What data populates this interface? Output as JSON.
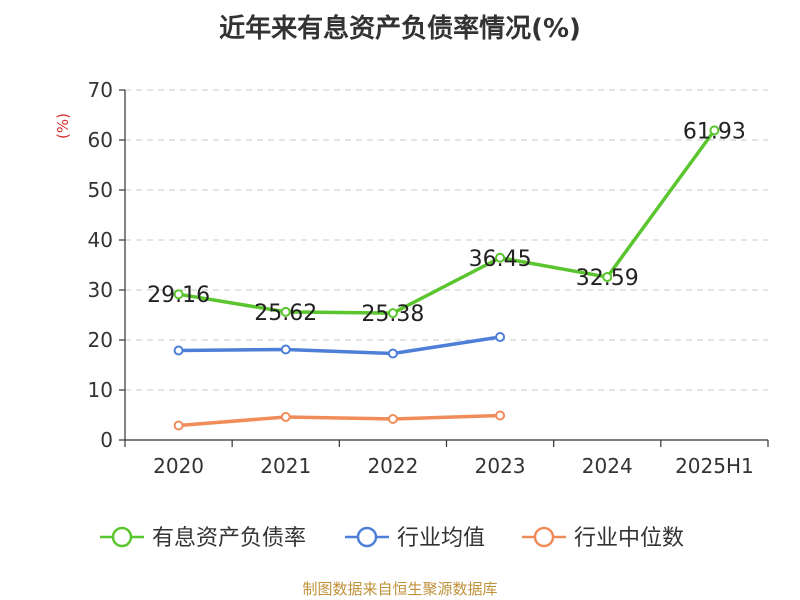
{
  "title": "近年来有息资产负债率情况(%)",
  "source": "制图数据来自恒生聚源数据库",
  "chart_data": {
    "type": "line",
    "title": "近年来有息资产负债率情况(%)",
    "ylabel": "(%)",
    "xlabel": "",
    "categories": [
      "2020",
      "2021",
      "2022",
      "2023",
      "2024",
      "2025H1"
    ],
    "ylim": [
      0,
      70
    ],
    "yticks": [
      0,
      10,
      20,
      30,
      40,
      50,
      60,
      70
    ],
    "grid": true,
    "legend_position": "bottom",
    "series": [
      {
        "name": "有息资产负债率",
        "color": "#5ac52e",
        "values": [
          29.16,
          25.62,
          25.38,
          36.45,
          32.59,
          61.93
        ],
        "labels": [
          "29.16",
          "25.62",
          "25.38",
          "36.45",
          "32.59",
          "61.93"
        ]
      },
      {
        "name": "行业均值",
        "color": "#4e7fd8",
        "values": [
          17.9,
          18.1,
          17.3,
          20.6,
          null,
          null
        ]
      },
      {
        "name": "行业中位数",
        "color": "#f08c5a",
        "values": [
          2.9,
          4.6,
          4.2,
          4.9,
          null,
          null
        ]
      }
    ]
  }
}
